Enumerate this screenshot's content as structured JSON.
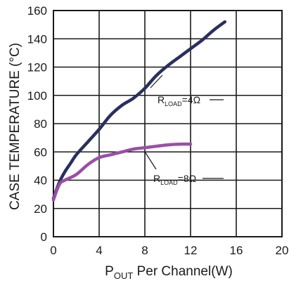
{
  "chart_data": {
    "type": "line",
    "xlabel": {
      "main": "P",
      "sub": "OUT",
      "rest": " Per Channel(W)"
    },
    "ylabel": "CASE TEMPERATURE (°C)",
    "xlim": [
      0,
      20
    ],
    "ylim": [
      0,
      160
    ],
    "xticks": [
      "0",
      "4",
      "8",
      "12",
      "16",
      "20"
    ],
    "yticks": [
      "0",
      "20",
      "40",
      "60",
      "80",
      "100",
      "120",
      "140",
      "160"
    ],
    "grid": true,
    "series": [
      {
        "label": {
          "main": "R",
          "sub": "LOAD",
          "rest": "=4Ω"
        },
        "color": "#2b2f5e",
        "x": [
          0,
          0.3,
          0.6,
          1.0,
          1.5,
          2.0,
          3.0,
          4.0,
          5.0,
          6.0,
          7.0,
          8.0,
          9.0,
          10.0,
          11.0,
          12.0,
          13.0,
          14.0,
          15.0
        ],
        "y": [
          27,
          34,
          40,
          46,
          52,
          58,
          67,
          76,
          86,
          93,
          98,
          105,
          114,
          121,
          127,
          133,
          139,
          146,
          152
        ]
      },
      {
        "label": {
          "main": "R",
          "sub": "LOAD",
          "rest": "=8Ω"
        },
        "color": "#9a4fa6",
        "x": [
          0,
          0.3,
          0.6,
          1.0,
          2.0,
          3.0,
          4.0,
          5.0,
          6.0,
          7.0,
          8.0,
          9.0,
          10.0,
          11.0,
          12.0
        ],
        "y": [
          26,
          33,
          38,
          40,
          44,
          51,
          56,
          58,
          60,
          62,
          63,
          64,
          65,
          65.5,
          65.5
        ]
      }
    ]
  }
}
